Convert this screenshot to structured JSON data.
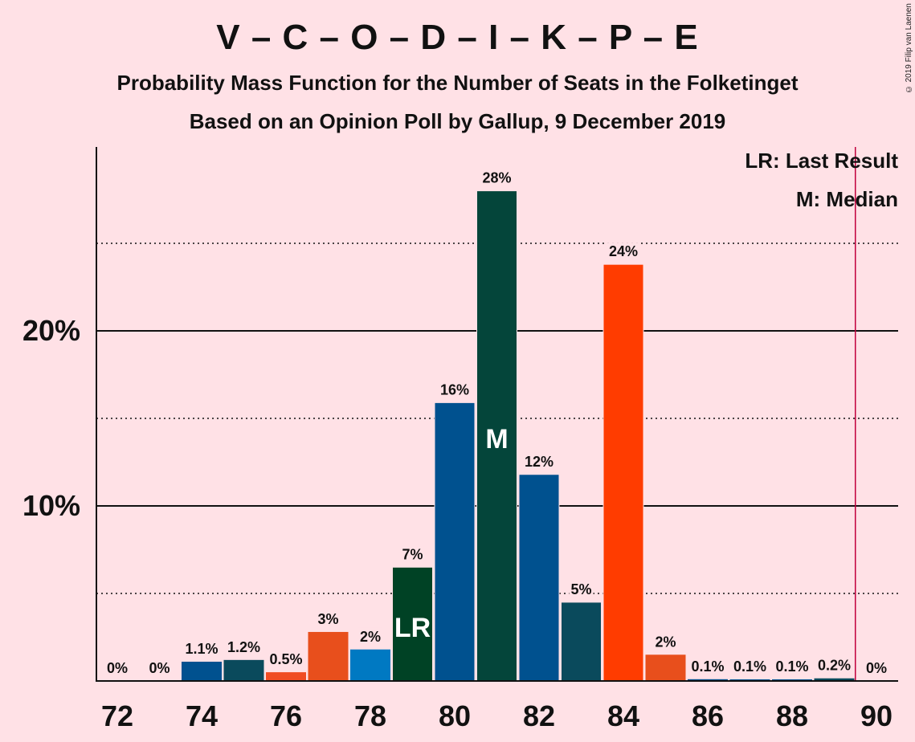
{
  "title": "V – C – O – D – I – K – P – E",
  "subtitle": "Probability Mass Function for the Number of Seats in the Folketinget",
  "subtitle2": "Based on an Opinion Poll by Gallup, 9 December 2019",
  "copyright": "© 2019 Filip van Laenen",
  "legend": {
    "lr": "LR: Last Result",
    "m": "M: Median"
  },
  "markers": {
    "lr_label": "LR",
    "lr_seat": 79,
    "median_label": "M",
    "median_seat": 81,
    "majority_line_seat": 89.5
  },
  "colors": {
    "background": "#FFE1E6",
    "majority_line": "#C0003C"
  },
  "chart_data": {
    "type": "bar",
    "title": "V – C – O – D – I – K – P – E",
    "xlabel": "",
    "ylabel": "",
    "ylim": [
      0,
      30
    ],
    "y_ticks": [
      10,
      20
    ],
    "y_tick_labels": [
      "10%",
      "20%"
    ],
    "y_minor_ticks": [
      5,
      15,
      25
    ],
    "x_tick_labels": [
      "72",
      "74",
      "76",
      "78",
      "80",
      "82",
      "84",
      "86",
      "88",
      "90"
    ],
    "categories": [
      72,
      73,
      74,
      75,
      76,
      77,
      78,
      79,
      80,
      81,
      82,
      83,
      84,
      85,
      86,
      87,
      88,
      89,
      90
    ],
    "values": [
      0,
      0,
      1.1,
      1.2,
      0.5,
      2.8,
      1.8,
      6.5,
      15.9,
      28.0,
      11.8,
      4.5,
      23.8,
      1.5,
      0.1,
      0.05,
      0.05,
      0.15,
      0
    ],
    "value_labels": [
      "0%",
      "0%",
      "1.1%",
      "1.2%",
      "0.5%",
      "3%",
      "2%",
      "7%",
      "16%",
      "28%",
      "12%",
      "5%",
      "24%",
      "2%",
      "0.1%",
      "0.1%",
      "0.1%",
      "0.2%",
      "0%"
    ],
    "bar_colors": [
      "#00518F",
      "#00518F",
      "#00518F",
      "#0A4A5C",
      "#F04C23",
      "#E84F1C",
      "#0079C2",
      "#004225",
      "#00518F",
      "#04453A",
      "#00518F",
      "#0A4A5C",
      "#FF3C00",
      "#E84F1C",
      "#00518F",
      "#00518F",
      "#00518F",
      "#0A4A5C",
      "#00518F"
    ]
  }
}
